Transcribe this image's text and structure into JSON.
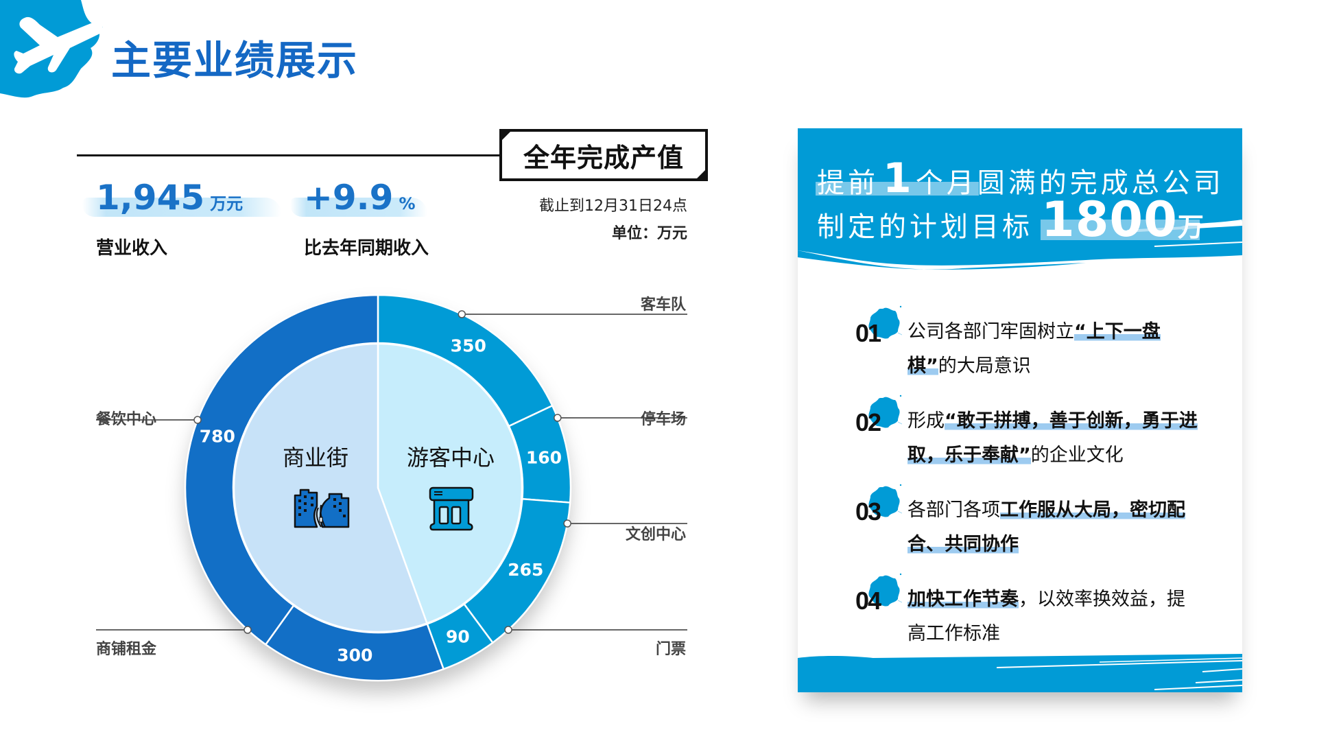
{
  "header": {
    "title": "主要业绩展示"
  },
  "section": {
    "title": "全年完成产值",
    "as_of": "截止到12月31日24点",
    "unit": "单位：万元"
  },
  "kpis": [
    {
      "value": "1,945",
      "unit": "万元",
      "label": "营业收入"
    },
    {
      "value": "+9.9",
      "unit": "%",
      "label": "比去年同期收入"
    }
  ],
  "colors": {
    "title_blue": "#1468c4",
    "outer_dark": "#126fc6",
    "outer_light": "#019bd6",
    "inner_left": "#c7e2f8",
    "inner_right": "#c6edfc",
    "panel_blue": "#019bd6",
    "highlight": "#9dcbf0"
  },
  "chart_data": {
    "type": "pie",
    "subtype": "nested-donut",
    "title": "全年完成产值",
    "unit": "万元",
    "start_angle_deg": 0,
    "direction": "clockwise",
    "inner": {
      "categories": [
        "游客中心",
        "商业街"
      ],
      "values": [
        865,
        1080
      ],
      "colors": [
        "#c6edfc",
        "#c7e2f8"
      ]
    },
    "outer": {
      "categories": [
        "客车队",
        "停车场",
        "文创中心",
        "门票",
        "商铺租金",
        "餐饮中心"
      ],
      "values": [
        350,
        160,
        265,
        90,
        300,
        780
      ],
      "parent": [
        "游客中心",
        "游客中心",
        "游客中心",
        "游客中心",
        "商业街",
        "商业街"
      ],
      "colors": [
        "#019bd6",
        "#019bd6",
        "#019bd6",
        "#019bd6",
        "#126fc6",
        "#126fc6"
      ]
    },
    "total": 1945,
    "data_labels": [
      "350",
      "160",
      "265",
      "90",
      "300",
      "780"
    ],
    "legend_position": "leader-lines"
  },
  "chart_labels": {
    "inner": [
      {
        "name": "游客中心",
        "icon": "store-icon"
      },
      {
        "name": "商业街",
        "icon": "city-street-icon"
      }
    ],
    "leaders": [
      {
        "name": "客车队",
        "side": "right"
      },
      {
        "name": "停车场",
        "side": "right"
      },
      {
        "name": "文创中心",
        "side": "right"
      },
      {
        "name": "门票",
        "side": "right"
      },
      {
        "name": "商铺租金",
        "side": "left"
      },
      {
        "name": "餐饮中心",
        "side": "left"
      }
    ]
  },
  "panel": {
    "headline_line1_pre": "提前",
    "headline_line1_num": "1",
    "headline_line1_post": "个月圆满的完成总公司",
    "headline_line2_pre": "制定的计划目标",
    "headline_line2_num": "1800",
    "headline_line2_unit": "万",
    "items": [
      {
        "num": "01",
        "parts": [
          {
            "t": "公司各部门牢固树立",
            "em": false
          },
          {
            "t": "“上下一盘棋”",
            "em": true
          },
          {
            "t": "的大局意识",
            "em": false
          }
        ]
      },
      {
        "num": "02",
        "parts": [
          {
            "t": "形成",
            "em": false
          },
          {
            "t": "“敢于拼搏，善于创新，勇于进取，乐于奉献”",
            "em": true
          },
          {
            "t": "的企业文化",
            "em": false
          }
        ]
      },
      {
        "num": "03",
        "parts": [
          {
            "t": "各部门各项",
            "em": false
          },
          {
            "t": "工作服从大局，密切配合、共同协作",
            "em": true
          }
        ]
      },
      {
        "num": "04",
        "parts": [
          {
            "t": "加快工作节奏",
            "em": true
          },
          {
            "t": "，以效率换效益，提高工作标准",
            "em": false
          }
        ]
      }
    ]
  }
}
